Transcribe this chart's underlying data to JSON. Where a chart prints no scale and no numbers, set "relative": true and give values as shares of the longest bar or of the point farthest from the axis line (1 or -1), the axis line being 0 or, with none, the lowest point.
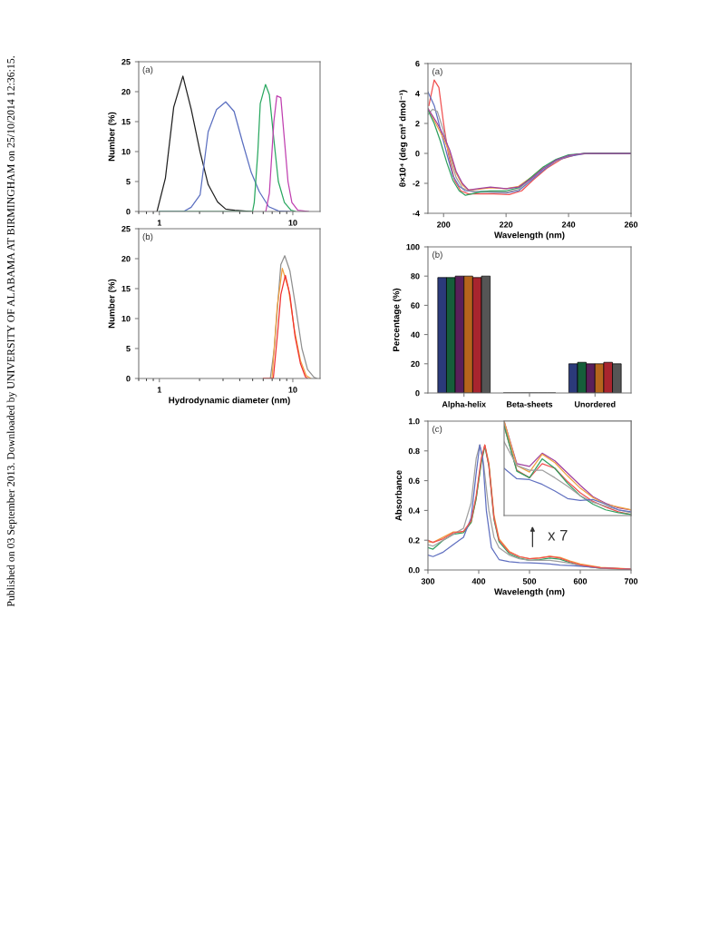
{
  "chart_data": [
    {
      "type": "line",
      "ylabel": "Number (%)",
      "log": "x",
      "xlim": [
        0.7,
        16
      ],
      "xticks": [
        1,
        10
      ],
      "ylim": [
        0,
        25
      ],
      "yticks": [
        0,
        5,
        10,
        15,
        20,
        25
      ],
      "grid": false,
      "legend": false,
      "annotations": [
        "(a)",
        "Published on 03 September 2013. Downloaded by UNIVERSITY OF ALABAMA AT BIRMINGHAM on 25/10/2014 12:36:15."
      ],
      "series": [
        {
          "color": "#202020",
          "x": [
            0.96,
            1.11,
            1.28,
            1.5,
            1.73,
            2.02,
            2.32,
            2.73,
            3.14,
            3.67,
            4.88
          ],
          "values": [
            0,
            5.6,
            17.4,
            22.6,
            17.1,
            9.9,
            4.5,
            1.6,
            0.4,
            0.2,
            0
          ]
        },
        {
          "color": "#5b6fc0",
          "x": [
            1.0,
            1.52,
            1.73,
            2.02,
            2.32,
            2.68,
            3.14,
            3.63,
            4.18,
            4.88,
            5.61,
            6.6,
            7.79,
            9.59
          ],
          "values": [
            0,
            0,
            0.7,
            2.8,
            13.3,
            17,
            18.3,
            16.7,
            11.7,
            6.5,
            3.3,
            0.8,
            0.1,
            0
          ]
        },
        {
          "color": "#2aa860",
          "x": [
            1.0,
            4.99,
            5.14,
            5.47,
            5.7,
            6.24,
            6.67,
            7.21,
            7.79,
            8.65,
            9.69,
            10.4
          ],
          "values": [
            0,
            0,
            1.5,
            10,
            18,
            21.2,
            19.5,
            12,
            5,
            1.5,
            0.2,
            0
          ]
        },
        {
          "color": "#c040b0",
          "x": [
            6.27,
            6.67,
            7.21,
            7.59,
            8.13,
            8.65,
            9.2,
            9.84,
            10.9,
            13.1
          ],
          "values": [
            0,
            3,
            15,
            19.3,
            19,
            12,
            5,
            1.5,
            0.2,
            0
          ]
        }
      ]
    },
    {
      "type": "line",
      "ylabel": "Number (%)",
      "xlabel": "Hydrodynamic diameter (nm)",
      "log": "x",
      "xlim": [
        0.7,
        16
      ],
      "xticks": [
        1,
        10
      ],
      "ylim": [
        0,
        25
      ],
      "yticks": [
        0,
        5,
        10,
        15,
        20,
        25
      ],
      "grid": false,
      "legend": false,
      "annotations": [
        "(b)"
      ],
      "series": [
        {
          "color": "#909090",
          "x": [
            6.78,
            7.26,
            8.13,
            8.7,
            9.5,
            10.5,
            11.7,
            12.9,
            14.4,
            15.1
          ],
          "values": [
            0,
            5,
            19,
            20.5,
            18,
            12,
            5,
            1.5,
            0.2,
            0
          ]
        },
        {
          "color": "#f0a040",
          "x": [
            6.98,
            7.64,
            8.34,
            9.27,
            10.3,
            11.4,
            12.6,
            13.6
          ],
          "values": [
            0,
            12,
            18.4,
            15,
            8,
            3,
            0.5,
            0
          ]
        },
        {
          "color": "#f03030",
          "x": [
            6.02,
            7.14,
            7.72,
            8.13,
            8.79,
            9.5,
            10.4,
            11.4,
            12.4,
            12.9
          ],
          "values": [
            0,
            0,
            8,
            14,
            17.2,
            14,
            7,
            2.5,
            0.3,
            0
          ]
        }
      ]
    },
    {
      "type": "line",
      "ylabel": "θ×10⁴ (deg cm² dmol⁻¹)",
      "xlabel": "Wavelength (nm)",
      "xlim": [
        195,
        260
      ],
      "xticks": [
        200,
        220,
        240,
        260
      ],
      "ylim": [
        -4,
        6
      ],
      "yticks": [
        -4,
        -2,
        0,
        2,
        4,
        6
      ],
      "grid": false,
      "legend": false,
      "annotations": [
        "(a)"
      ],
      "series": [
        {
          "color": "#f05050",
          "x": [
            195.3,
            197,
            198.5,
            200,
            201.5,
            203.5,
            205.5,
            208,
            212,
            216,
            221,
            225,
            228.5,
            233,
            238,
            243,
            248,
            260
          ],
          "values": [
            3.2,
            4.9,
            4.4,
            2,
            0,
            -1.8,
            -2.5,
            -2.7,
            -2.7,
            -2.7,
            -2.75,
            -2.5,
            -1.8,
            -1,
            -0.35,
            -0.05,
            0,
            0
          ]
        },
        {
          "color": "#6070c0",
          "x": [
            195,
            197,
            199,
            201,
            203,
            205,
            207,
            210,
            213,
            216,
            220,
            224,
            228,
            232,
            236,
            240,
            245,
            250,
            260
          ],
          "values": [
            4.1,
            3.2,
            1.6,
            0,
            -1.5,
            -2.2,
            -2.5,
            -2.55,
            -2.55,
            -2.6,
            -2.65,
            -2.5,
            -1.8,
            -1.1,
            -0.5,
            -0.2,
            -0.02,
            0,
            0
          ]
        },
        {
          "color": "#a0a0a0",
          "x": [
            195,
            196.5,
            198,
            200,
            202,
            204,
            206,
            208,
            211,
            215,
            220,
            224,
            228,
            232,
            236,
            240,
            245,
            260
          ],
          "values": [
            2.6,
            2.95,
            2.8,
            1.5,
            -0.2,
            -1.6,
            -2.3,
            -2.5,
            -2.6,
            -2.6,
            -2.6,
            -2.4,
            -1.7,
            -1,
            -0.5,
            -0.15,
            0,
            0
          ]
        },
        {
          "color": "#f0a040",
          "x": [
            195,
            198,
            200,
            202,
            204,
            206,
            208,
            211,
            215,
            220,
            224,
            228,
            232
          ],
          "values": [
            3,
            1.8,
            1,
            0,
            -1.3,
            -2.1,
            -2.45,
            -2.4,
            -2.3,
            -2.35,
            -2.2,
            -1.6,
            -0.9
          ]
        },
        {
          "color": "#30a060",
          "x": [
            195,
            197,
            199,
            201,
            203,
            205,
            207,
            209,
            212,
            215,
            220,
            224,
            228,
            232,
            236,
            240,
            245,
            260
          ],
          "values": [
            2.9,
            2,
            0.8,
            -0.6,
            -1.8,
            -2.5,
            -2.8,
            -2.7,
            -2.55,
            -2.5,
            -2.5,
            -2.3,
            -1.6,
            -0.9,
            -0.4,
            -0.1,
            0,
            0
          ]
        },
        {
          "color": "#a040a0",
          "x": [
            195,
            198,
            200,
            202,
            204,
            206,
            208,
            211,
            215,
            220,
            224,
            228,
            232,
            236,
            240,
            245,
            260
          ],
          "values": [
            3,
            2,
            1.2,
            0.2,
            -1.2,
            -2,
            -2.45,
            -2.35,
            -2.25,
            -2.35,
            -2.25,
            -1.7,
            -1,
            -0.45,
            -0.15,
            0,
            0
          ]
        }
      ]
    },
    {
      "type": "bar",
      "ylabel": "Percentage (%)",
      "categories": [
        "Alpha-helix",
        "Beta-sheets",
        "Unordered"
      ],
      "ylim": [
        0,
        100
      ],
      "yticks": [
        0,
        20,
        40,
        60,
        80,
        100
      ],
      "grid": false,
      "legend": false,
      "annotations": [
        "(b)"
      ],
      "series": [
        {
          "color": "#2b3a7a",
          "values": [
            79,
            0,
            20
          ]
        },
        {
          "color": "#155e3a",
          "values": [
            79,
            0,
            21
          ]
        },
        {
          "color": "#5a1f5a",
          "values": [
            80,
            0,
            20
          ]
        },
        {
          "color": "#b5651d",
          "values": [
            80,
            0,
            20
          ]
        },
        {
          "color": "#a8252e",
          "values": [
            79,
            0,
            21
          ]
        },
        {
          "color": "#555555",
          "values": [
            80,
            0,
            20
          ]
        }
      ]
    },
    {
      "type": "line",
      "ylabel": "Absorbance",
      "xlabel": "Wavelength (nm)",
      "xlim": [
        300,
        700
      ],
      "xticks": [
        300,
        400,
        500,
        600,
        700
      ],
      "ylim": [
        0,
        1
      ],
      "yticks": [
        {
          "value": 0,
          "label": "0.0"
        },
        0.2,
        0.4,
        0.6,
        0.8,
        {
          "value": 1,
          "label": "1.0"
        }
      ],
      "grid": false,
      "legend": false,
      "annotations": [
        "(c)",
        "x 7"
      ],
      "series": [
        {
          "color": "#f0a040",
          "x": [
            300,
            310,
            330,
            350,
            370,
            385,
            395,
            405,
            412,
            420,
            430,
            440,
            460,
            480,
            500,
            520,
            540,
            560,
            580,
            600,
            640,
            700
          ],
          "values": [
            0.19,
            0.185,
            0.22,
            0.255,
            0.255,
            0.32,
            0.48,
            0.73,
            0.84,
            0.72,
            0.37,
            0.21,
            0.125,
            0.09,
            0.075,
            0.082,
            0.092,
            0.085,
            0.06,
            0.04,
            0.018,
            0.007
          ]
        },
        {
          "color": "#30a060",
          "x": [
            300,
            310,
            330,
            350,
            370,
            385,
            395,
            405,
            412,
            420,
            430,
            440,
            460,
            480,
            500,
            520,
            540,
            560,
            580,
            600,
            640,
            700
          ],
          "values": [
            0.15,
            0.14,
            0.2,
            0.24,
            0.25,
            0.32,
            0.48,
            0.72,
            0.83,
            0.7,
            0.34,
            0.19,
            0.11,
            0.08,
            0.065,
            0.07,
            0.08,
            0.072,
            0.05,
            0.03,
            0.012,
            0.003
          ]
        },
        {
          "color": "#a0a0a0",
          "x": [
            300,
            310,
            330,
            350,
            370,
            385,
            395,
            402,
            410,
            420,
            430,
            440,
            460,
            480,
            500,
            520,
            540,
            560,
            580,
            600,
            640,
            700
          ],
          "values": [
            0.17,
            0.16,
            0.2,
            0.24,
            0.28,
            0.45,
            0.75,
            0.84,
            0.7,
            0.4,
            0.22,
            0.15,
            0.1,
            0.075,
            0.065,
            0.065,
            0.065,
            0.055,
            0.045,
            0.03,
            0.012,
            0.004
          ]
        },
        {
          "color": "#6070c0",
          "x": [
            300,
            310,
            330,
            350,
            370,
            385,
            395,
            402,
            408,
            415,
            425,
            440,
            460,
            480,
            500,
            520,
            540,
            560,
            580,
            600,
            640,
            700
          ],
          "values": [
            0.1,
            0.09,
            0.12,
            0.17,
            0.22,
            0.35,
            0.65,
            0.84,
            0.75,
            0.4,
            0.15,
            0.07,
            0.055,
            0.05,
            0.048,
            0.045,
            0.04,
            0.033,
            0.03,
            0.025,
            0.015,
            0.005
          ]
        },
        {
          "color": "#f05050",
          "x": [
            300,
            310,
            330,
            350,
            370,
            385,
            395,
            405,
            412,
            420,
            430,
            440,
            460,
            480,
            500,
            520,
            540,
            560,
            580,
            600,
            640,
            700
          ],
          "values": [
            0.2,
            0.185,
            0.21,
            0.25,
            0.26,
            0.33,
            0.5,
            0.75,
            0.84,
            0.7,
            0.35,
            0.2,
            0.12,
            0.09,
            0.075,
            0.08,
            0.09,
            0.08,
            0.055,
            0.035,
            0.015,
            0.005
          ]
        }
      ]
    },
    {
      "type": "line",
      "relative": true,
      "categories": [
        null,
        null,
        null,
        null,
        null,
        null,
        null,
        null,
        null,
        null,
        null
      ],
      "grid": false,
      "legend": false,
      "series": [
        {
          "color": "#a040a0",
          "values": [
            1,
            0.55,
            0.52,
            0.66,
            0.58,
            0.45,
            0.32,
            0.2,
            0.13,
            0.08,
            0.06
          ]
        },
        {
          "color": "#f0a040",
          "values": [
            1,
            0.53,
            0.46,
            0.65,
            0.56,
            0.42,
            0.29,
            0.19,
            0.12,
            0.09,
            0.06
          ]
        },
        {
          "color": "#f05050",
          "values": [
            0.95,
            0.48,
            0.4,
            0.55,
            0.5,
            0.36,
            0.24,
            0.15,
            0.09,
            0.04,
            0.01
          ]
        },
        {
          "color": "#30a060",
          "values": [
            0.95,
            0.47,
            0.4,
            0.6,
            0.5,
            0.34,
            0.21,
            0.12,
            0.06,
            0.03,
            0.01
          ]
        },
        {
          "color": "#a0a0a0",
          "values": [
            0.78,
            0.53,
            0.48,
            0.48,
            0.4,
            0.31,
            0.21,
            0.14,
            0.1,
            0.06,
            0.03
          ]
        },
        {
          "color": "#6070c0",
          "values": [
            0.5,
            0.39,
            0.38,
            0.33,
            0.26,
            0.18,
            0.16,
            0.17,
            0.12,
            0.06,
            0.04
          ]
        }
      ]
    }
  ]
}
